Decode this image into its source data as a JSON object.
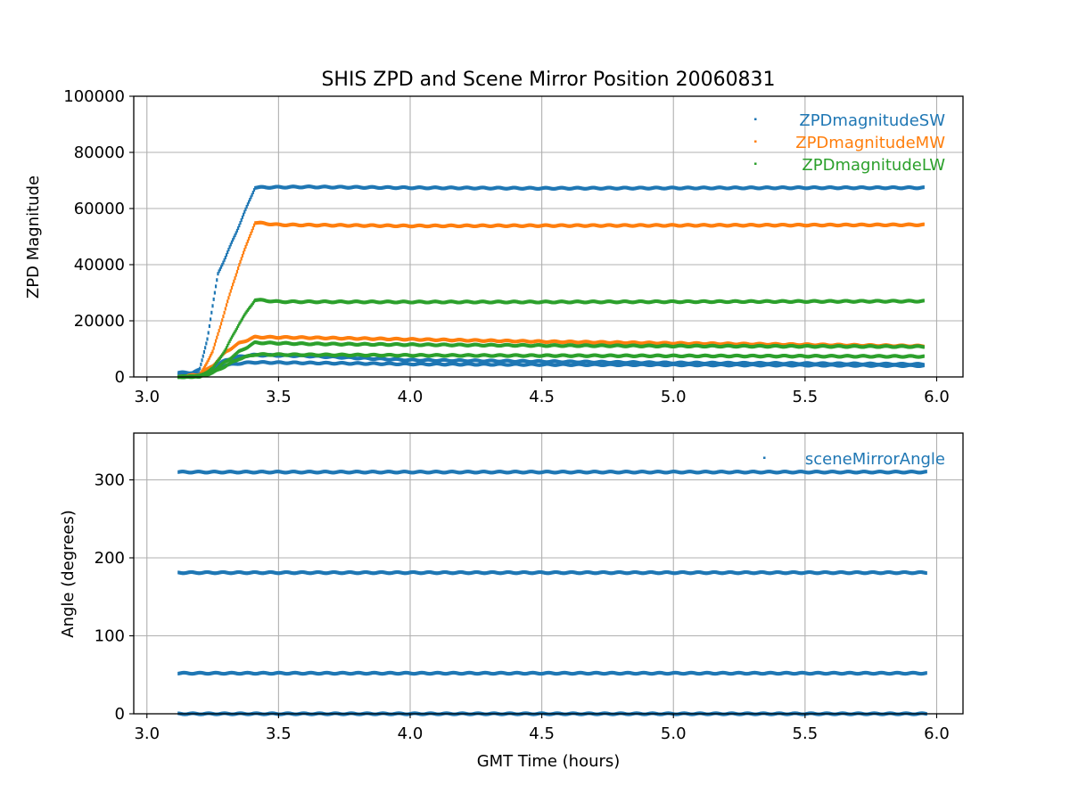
{
  "chart_data": [
    {
      "type": "scatter",
      "title": "SHIS ZPD and Scene Mirror Position 20060831",
      "xlabel": "",
      "ylabel": "ZPD Magnitude",
      "xlim": [
        2.95,
        6.1
      ],
      "ylim": [
        0,
        100000
      ],
      "x_ticks": [
        3.0,
        3.5,
        4.0,
        4.5,
        5.0,
        5.5,
        6.0
      ],
      "x_tick_labels": [
        "3.0",
        "3.5",
        "4.0",
        "4.5",
        "5.0",
        "5.5",
        "6.0"
      ],
      "y_ticks": [
        0,
        20000,
        40000,
        60000,
        80000,
        100000
      ],
      "y_tick_labels": [
        "0",
        "20000",
        "40000",
        "60000",
        "80000",
        "100000"
      ],
      "grid": true,
      "legend_position": "top-right",
      "series": [
        {
          "name": "ZPDmagnitudeSW",
          "color": "#1f77b4",
          "tracks": [
            {
              "x": [
                3.12,
                3.17,
                3.2,
                3.23,
                3.27,
                3.3,
                3.35,
                3.41,
                3.6,
                4.0,
                4.5,
                5.0,
                5.5,
                5.95
              ],
              "y": [
                1500,
                1500,
                2500,
                14000,
                37000,
                43000,
                54000,
                67500,
                67700,
                67400,
                67200,
                67300,
                67400,
                67400
              ]
            },
            {
              "x": [
                3.12,
                3.2,
                3.25,
                3.3,
                3.35,
                3.4,
                3.6,
                4.0,
                4.5,
                5.0,
                5.5,
                5.95
              ],
              "y": [
                1000,
                1200,
                3500,
                6000,
                7200,
                7800,
                7500,
                6000,
                5500,
                5000,
                4800,
                4500
              ]
            },
            {
              "x": [
                3.12,
                3.2,
                3.25,
                3.3,
                3.35,
                3.4,
                3.6,
                4.0,
                4.5,
                5.0,
                5.5,
                5.95
              ],
              "y": [
                800,
                1000,
                3000,
                4200,
                4800,
                5200,
                5000,
                4600,
                4400,
                4300,
                4200,
                4000
              ]
            }
          ]
        },
        {
          "name": "ZPDmagnitudeMW",
          "color": "#ff7f0e",
          "tracks": [
            {
              "x": [
                3.12,
                3.2,
                3.25,
                3.3,
                3.35,
                3.41,
                3.5,
                4.0,
                4.5,
                5.0,
                5.5,
                5.95
              ],
              "y": [
                0,
                500,
                9000,
                25000,
                40000,
                55000,
                54200,
                53800,
                53900,
                54000,
                54100,
                54200
              ]
            },
            {
              "x": [
                3.12,
                3.2,
                3.25,
                3.3,
                3.35,
                3.41,
                3.6,
                4.0,
                4.5,
                5.0,
                5.5,
                5.95
              ],
              "y": [
                0,
                800,
                4000,
                9000,
                12000,
                14200,
                14000,
                13400,
                12600,
                12000,
                11500,
                11000
              ]
            }
          ]
        },
        {
          "name": "ZPDmagnitudeLW",
          "color": "#2ca02c",
          "tracks": [
            {
              "x": [
                3.12,
                3.2,
                3.25,
                3.3,
                3.35,
                3.41,
                3.5,
                4.0,
                4.5,
                5.0,
                5.5,
                5.95
              ],
              "y": [
                0,
                300,
                3000,
                10000,
                19000,
                27500,
                26800,
                26700,
                26700,
                26800,
                26900,
                27000
              ]
            },
            {
              "x": [
                3.12,
                3.2,
                3.25,
                3.3,
                3.35,
                3.41,
                3.6,
                4.0,
                4.5,
                5.0,
                5.5,
                5.95
              ],
              "y": [
                0,
                200,
                2000,
                5500,
                9000,
                12200,
                11800,
                11500,
                11200,
                11000,
                10900,
                10800
              ]
            },
            {
              "x": [
                3.12,
                3.2,
                3.25,
                3.3,
                3.35,
                3.41,
                3.6,
                4.0,
                4.5,
                5.0,
                5.5,
                5.95
              ],
              "y": [
                0,
                200,
                1500,
                4000,
                6500,
                8000,
                7900,
                7700,
                7600,
                7500,
                7400,
                7300
              ]
            }
          ]
        }
      ]
    },
    {
      "type": "scatter",
      "title": "",
      "xlabel": "GMT Time (hours)",
      "ylabel": "Angle (degrees)",
      "xlim": [
        2.95,
        6.1
      ],
      "ylim": [
        0,
        360
      ],
      "x_ticks": [
        3.0,
        3.5,
        4.0,
        4.5,
        5.0,
        5.5,
        6.0
      ],
      "x_tick_labels": [
        "3.0",
        "3.5",
        "4.0",
        "4.5",
        "5.0",
        "5.5",
        "6.0"
      ],
      "y_ticks": [
        0,
        100,
        200,
        300
      ],
      "y_tick_labels": [
        "0",
        "100",
        "200",
        "300"
      ],
      "grid": true,
      "legend_position": "top-right",
      "series": [
        {
          "name": "sceneMirrorAngle",
          "color": "#1f77b4",
          "tracks": [
            {
              "x": [
                3.12,
                5.96
              ],
              "y": [
                310,
                310
              ]
            },
            {
              "x": [
                3.12,
                5.96
              ],
              "y": [
                181,
                181
              ]
            },
            {
              "x": [
                3.12,
                5.96
              ],
              "y": [
                52,
                52
              ]
            },
            {
              "x": [
                3.12,
                5.96
              ],
              "y": [
                0,
                0
              ]
            }
          ]
        }
      ]
    }
  ]
}
